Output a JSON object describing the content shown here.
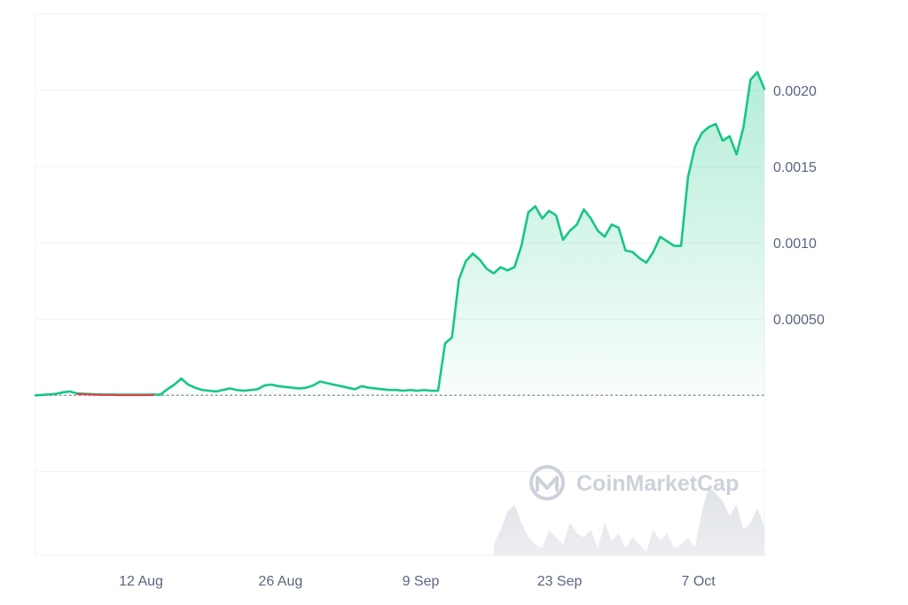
{
  "watermark": {
    "text": "CoinMarketCap"
  },
  "chart_data": {
    "type": "area",
    "x_labels": [
      "12 Aug",
      "26 Aug",
      "9 Sep",
      "23 Sep",
      "7 Oct"
    ],
    "y_tick_labels": [
      "0.00050",
      "0.0010",
      "0.0015",
      "0.0020"
    ],
    "y_ticks": [
      0.0005,
      0.001,
      0.0015,
      0.002
    ],
    "ylim": [
      -0.00105,
      0.0025
    ],
    "xlim": [
      0,
      105
    ],
    "baseline": 0.0,
    "grid": true,
    "colors": {
      "line": "#16c784",
      "negative": "#ea3943",
      "fill": "#16c784",
      "volume": "#e6e8ec",
      "grid": "#eff2f5",
      "axis_text": "#58667e",
      "baseline": "#8c94a3"
    },
    "series": [
      {
        "x": [
          0,
          1,
          2,
          3,
          4,
          5,
          6,
          7,
          8,
          9,
          10,
          11,
          12,
          13,
          14,
          15,
          16,
          17,
          18,
          19,
          20,
          21,
          22,
          23,
          24,
          25,
          26,
          27,
          28,
          29,
          30,
          31,
          32,
          33,
          34,
          35,
          36,
          37,
          38,
          39,
          40,
          41,
          42,
          43,
          44,
          45,
          46,
          47,
          48,
          49,
          50,
          51,
          52,
          53,
          54,
          55,
          56,
          57,
          58,
          59,
          60,
          61,
          62,
          63,
          64,
          65,
          66,
          67,
          68,
          69,
          70,
          71,
          72,
          73,
          74,
          75,
          76,
          77,
          78,
          79,
          80,
          81,
          82,
          83,
          84,
          85,
          86,
          87,
          88,
          89,
          90,
          91,
          92,
          93,
          94,
          95,
          96,
          97,
          98,
          99,
          100,
          101,
          102,
          103,
          104,
          105
        ],
        "y": [
          0.0,
          3e-06,
          6e-06,
          1e-05,
          2e-05,
          2.5e-05,
          1.2e-05,
          1e-05,
          8e-06,
          6e-06,
          5e-06,
          5e-06,
          4e-06,
          4e-06,
          4e-06,
          4e-06,
          4e-06,
          5e-06,
          5e-06,
          4e-05,
          7e-05,
          0.00011,
          7e-05,
          5e-05,
          3.5e-05,
          3e-05,
          2.5e-05,
          3.5e-05,
          4.5e-05,
          3.5e-05,
          3e-05,
          3.5e-05,
          4e-05,
          6.5e-05,
          7e-05,
          6e-05,
          5.5e-05,
          5e-05,
          4.5e-05,
          5e-05,
          6.5e-05,
          9e-05,
          8e-05,
          7e-05,
          6e-05,
          5e-05,
          4e-05,
          6e-05,
          5e-05,
          4.5e-05,
          4e-05,
          3.5e-05,
          3.5e-05,
          3e-05,
          3.5e-05,
          3e-05,
          3.5e-05,
          3e-05,
          3e-05,
          0.00034,
          0.00038,
          0.00076,
          0.00088,
          0.00093,
          0.00089,
          0.00083,
          0.0008,
          0.00084,
          0.00082,
          0.00084,
          0.00098,
          0.0012,
          0.00124,
          0.00116,
          0.00121,
          0.00118,
          0.00102,
          0.00108,
          0.00112,
          0.00122,
          0.00116,
          0.00108,
          0.00104,
          0.00112,
          0.0011,
          0.00095,
          0.00094,
          0.0009,
          0.00087,
          0.00094,
          0.00104,
          0.00101,
          0.00098,
          0.00098,
          0.00143,
          0.00163,
          0.00172,
          0.00176,
          0.00178,
          0.00167,
          0.0017,
          0.00158,
          0.00176,
          0.00207,
          0.00212,
          0.00201
        ]
      }
    ],
    "volume": {
      "x": [
        66,
        67,
        68,
        69,
        70,
        71,
        72,
        73,
        74,
        75,
        76,
        77,
        78,
        79,
        80,
        81,
        82,
        83,
        84,
        85,
        86,
        87,
        88,
        89,
        90,
        91,
        92,
        93,
        94,
        95,
        96,
        97,
        98,
        99,
        100,
        101,
        102,
        103,
        104,
        105
      ],
      "y": [
        0.15,
        0.35,
        0.6,
        0.7,
        0.45,
        0.25,
        0.15,
        0.1,
        0.35,
        0.25,
        0.15,
        0.45,
        0.3,
        0.25,
        0.35,
        0.1,
        0.45,
        0.2,
        0.3,
        0.1,
        0.25,
        0.15,
        0.05,
        0.35,
        0.2,
        0.3,
        0.1,
        0.15,
        0.25,
        0.1,
        0.6,
        0.95,
        0.85,
        0.75,
        0.55,
        0.7,
        0.35,
        0.45,
        0.65,
        0.4
      ]
    }
  }
}
